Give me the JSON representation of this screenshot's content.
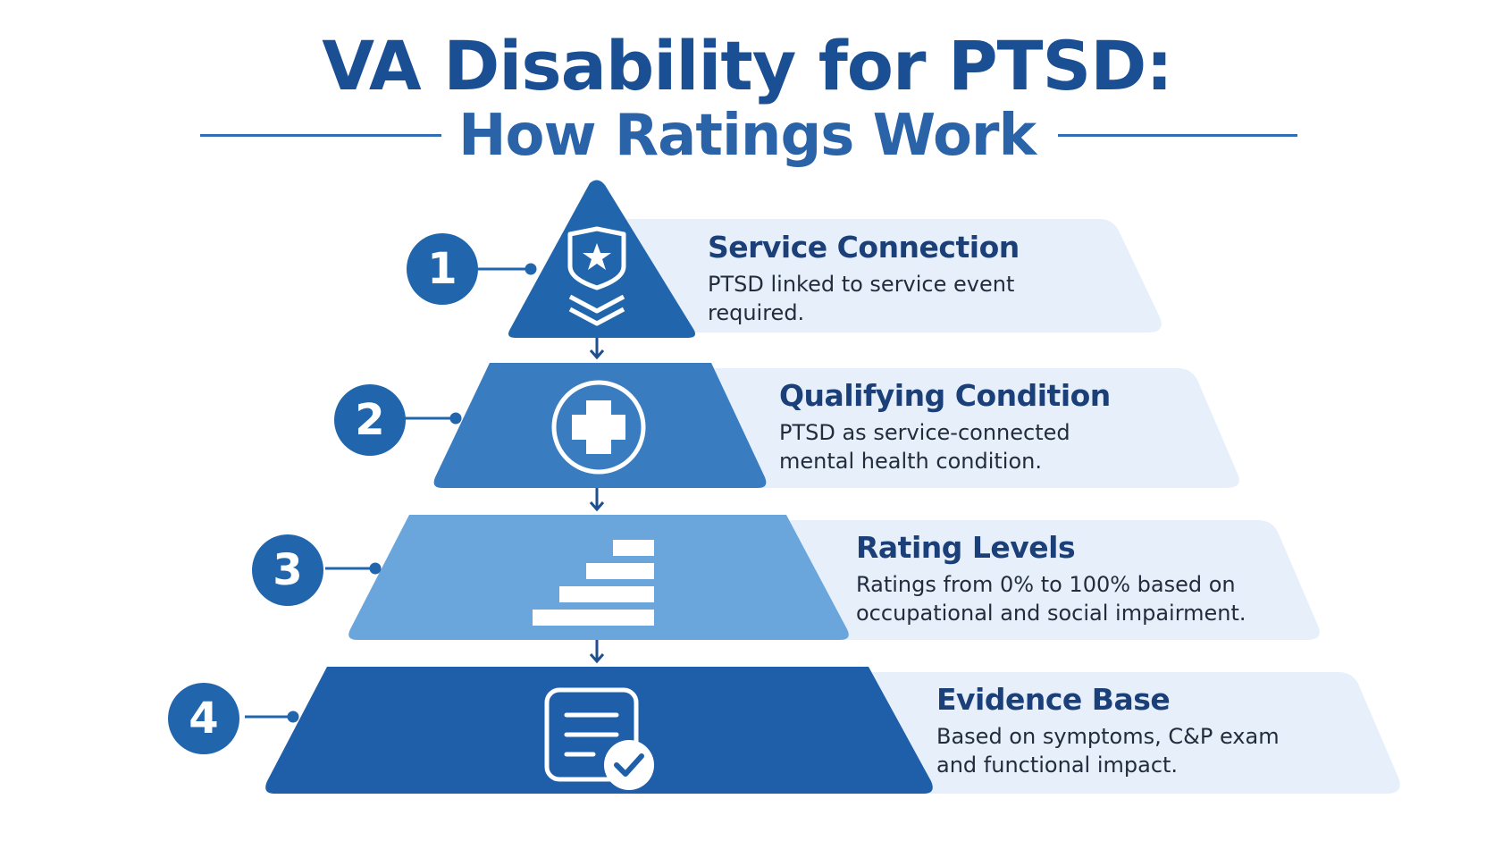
{
  "title": {
    "line1": "VA Disability for PTSD:",
    "line2": "How Ratings Work"
  },
  "steps": [
    {
      "number": "1",
      "title": "Service Connection",
      "desc": "PTSD linked to service event required.",
      "icon": "shield-star-icon"
    },
    {
      "number": "2",
      "title": "Qualifying Condition",
      "desc": "PTSD as service-connected mental health condition.",
      "icon": "medical-cross-icon"
    },
    {
      "number": "3",
      "title": "Rating Levels",
      "desc": "Ratings from 0% to 100% based on occupational and social impairment.",
      "icon": "bar-levels-icon"
    },
    {
      "number": "4",
      "title": "Evidence Base",
      "desc": "Based on symptoms, C&P exam and functional impact.",
      "icon": "document-check-icon"
    }
  ],
  "colors": {
    "tier1": "#2166ad",
    "tier2": "#3a7cc0",
    "tier3": "#6aa6dc",
    "tier4": "#1f5ea8",
    "panel": "#e7f0fa",
    "number": "#2166ad",
    "title": "#1b4f93"
  }
}
